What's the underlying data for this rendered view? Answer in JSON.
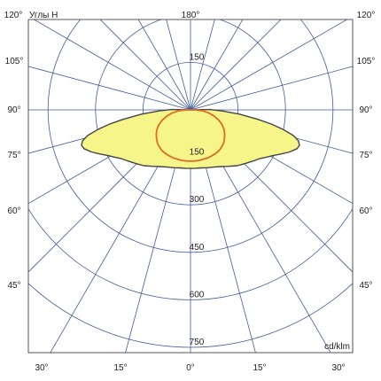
{
  "chart_data": {
    "type": "polar",
    "subtitle": "Углы H",
    "unit_label": "cd/klm",
    "radial_labels_upper": [
      "150"
    ],
    "radial_labels_lower": [
      "150",
      "300",
      "450",
      "600",
      "750"
    ],
    "radial_rings": [
      150,
      300,
      450,
      600,
      750
    ],
    "angle_labels_top": [
      "120°",
      "180°",
      "120°"
    ],
    "angle_labels_left": [
      "105°",
      "90°",
      "75°",
      "60°",
      "45°"
    ],
    "angle_labels_right": [
      "105°",
      "90°",
      "75°",
      "60°",
      "45°"
    ],
    "angle_labels_bottom": [
      "30°",
      "15°",
      "0°",
      "15°",
      "30°"
    ],
    "spoke_step_deg": 15,
    "series": [
      {
        "name": "",
        "color": "#f6f58a",
        "edge": "#444444",
        "points": [
          [
            -180,
            0
          ],
          [
            -95,
            3
          ],
          [
            -91,
            60
          ],
          [
            -88,
            100
          ],
          [
            -85,
            155
          ],
          [
            -82,
            215
          ],
          [
            -80,
            260
          ],
          [
            -78,
            300
          ],
          [
            -76,
            335
          ],
          [
            -74,
            355
          ],
          [
            -72,
            362
          ],
          [
            -70,
            358
          ],
          [
            -67,
            340
          ],
          [
            -64,
            318
          ],
          [
            -61,
            298
          ],
          [
            -58,
            282
          ],
          [
            -55,
            268
          ],
          [
            -51,
            256
          ],
          [
            -46,
            243
          ],
          [
            -40,
            230
          ],
          [
            -34,
            215
          ],
          [
            -28,
            203
          ],
          [
            -22,
            195
          ],
          [
            -16,
            190
          ],
          [
            -10,
            186
          ],
          [
            -5,
            185
          ],
          [
            0,
            185
          ],
          [
            5,
            185
          ],
          [
            10,
            186
          ],
          [
            16,
            190
          ],
          [
            22,
            195
          ],
          [
            28,
            203
          ],
          [
            34,
            215
          ],
          [
            40,
            230
          ],
          [
            46,
            243
          ],
          [
            51,
            256
          ],
          [
            55,
            268
          ],
          [
            58,
            282
          ],
          [
            61,
            298
          ],
          [
            64,
            318
          ],
          [
            67,
            340
          ],
          [
            70,
            358
          ],
          [
            72,
            362
          ],
          [
            74,
            355
          ],
          [
            76,
            335
          ],
          [
            78,
            300
          ],
          [
            80,
            260
          ],
          [
            82,
            215
          ],
          [
            85,
            155
          ],
          [
            88,
            100
          ],
          [
            91,
            60
          ],
          [
            95,
            3
          ],
          [
            180,
            0
          ]
        ]
      },
      {
        "name": "",
        "color": "#e06a2a",
        "points": [
          [
            -180,
            0
          ],
          [
            -90,
            15
          ],
          [
            -85,
            40
          ],
          [
            -80,
            60
          ],
          [
            -75,
            78
          ],
          [
            -70,
            95
          ],
          [
            -65,
            110
          ],
          [
            -60,
            122
          ],
          [
            -55,
            132
          ],
          [
            -50,
            140
          ],
          [
            -45,
            148
          ],
          [
            -40,
            153
          ],
          [
            -35,
            157
          ],
          [
            -30,
            159
          ],
          [
            -25,
            160
          ],
          [
            -20,
            161
          ],
          [
            -15,
            161
          ],
          [
            -10,
            162
          ],
          [
            -5,
            162
          ],
          [
            0,
            162
          ],
          [
            5,
            162
          ],
          [
            10,
            162
          ],
          [
            15,
            161
          ],
          [
            20,
            161
          ],
          [
            25,
            160
          ],
          [
            30,
            159
          ],
          [
            35,
            157
          ],
          [
            40,
            153
          ],
          [
            45,
            148
          ],
          [
            50,
            140
          ],
          [
            55,
            132
          ],
          [
            60,
            122
          ],
          [
            65,
            110
          ],
          [
            70,
            95
          ],
          [
            75,
            78
          ],
          [
            80,
            60
          ],
          [
            85,
            40
          ],
          [
            90,
            15
          ],
          [
            180,
            0
          ]
        ]
      }
    ]
  }
}
